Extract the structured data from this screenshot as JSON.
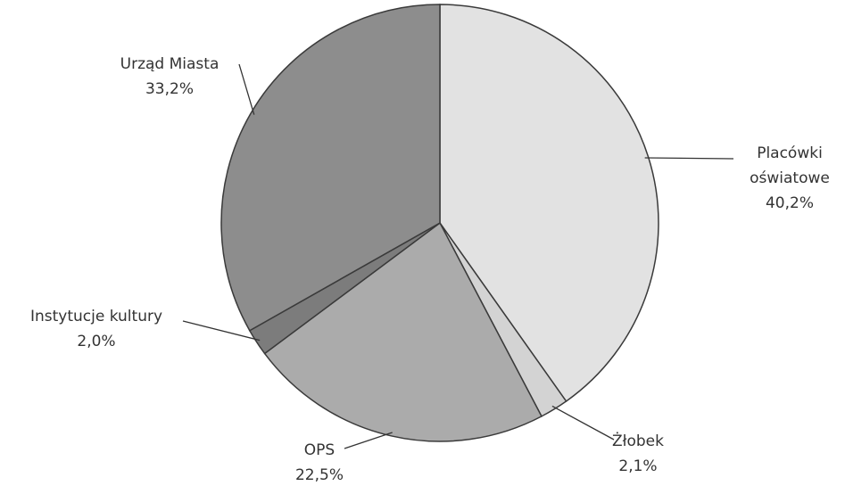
{
  "chart_data": {
    "type": "pie",
    "categories": [
      "Placówki oświatowe",
      "Żłobek",
      "OPS",
      "Instytucje kultury",
      "Urząd Miasta"
    ],
    "values": [
      40.2,
      2.1,
      22.5,
      2.0,
      33.2
    ],
    "value_labels": [
      "40,2%",
      "2,1%",
      "22,5%",
      "2,0%",
      "33,2%"
    ],
    "colors": [
      "#e2e2e2",
      "#d3d3d3",
      "#ababab",
      "#7c7c7c",
      "#8d8d8d"
    ]
  }
}
